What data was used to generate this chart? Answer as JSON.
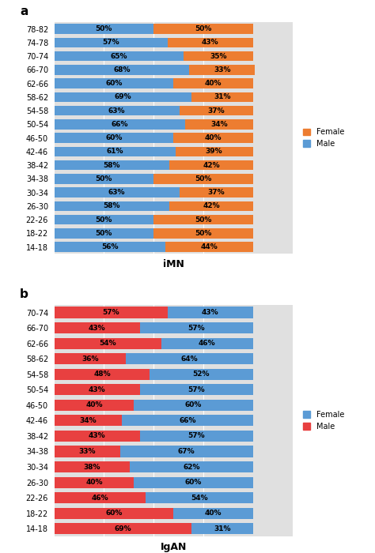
{
  "imn": {
    "categories": [
      "78-82",
      "74-78",
      "70-74",
      "66-70",
      "62-66",
      "58-62",
      "54-58",
      "50-54",
      "46-50",
      "42-46",
      "38-42",
      "34-38",
      "30-34",
      "26-30",
      "22-26",
      "18-22",
      "14-18"
    ],
    "male": [
      50,
      57,
      65,
      68,
      60,
      69,
      63,
      66,
      60,
      61,
      58,
      50,
      63,
      58,
      50,
      50,
      56
    ],
    "female": [
      50,
      43,
      35,
      33,
      40,
      31,
      37,
      34,
      40,
      39,
      42,
      50,
      37,
      42,
      50,
      50,
      44
    ],
    "male_color": "#5b9bd5",
    "female_color": "#ed7d31",
    "title": "iMN",
    "label": "a",
    "legend_female": "Female",
    "legend_male": "Male"
  },
  "igan": {
    "categories": [
      "70-74",
      "66-70",
      "62-66",
      "58-62",
      "54-58",
      "50-54",
      "46-50",
      "42-46",
      "38-42",
      "34-38",
      "30-34",
      "26-30",
      "22-26",
      "18-22",
      "14-18"
    ],
    "male": [
      57,
      43,
      54,
      36,
      48,
      43,
      40,
      34,
      43,
      33,
      38,
      40,
      46,
      60,
      69
    ],
    "female": [
      43,
      57,
      46,
      64,
      52,
      57,
      60,
      66,
      57,
      67,
      62,
      60,
      54,
      40,
      31
    ],
    "male_color": "#e84040",
    "female_color": "#5b9bd5",
    "title": "IgAN",
    "label": "b",
    "legend_female": "Female",
    "legend_male": "Male"
  },
  "background_color": "#e0e0e0",
  "bar_height": 0.72,
  "fontsize_ytick": 7,
  "fontsize_pct": 6.5,
  "fontsize_title": 9,
  "fontsize_panel": 11,
  "fontsize_legend": 7,
  "xlim_max": 120
}
